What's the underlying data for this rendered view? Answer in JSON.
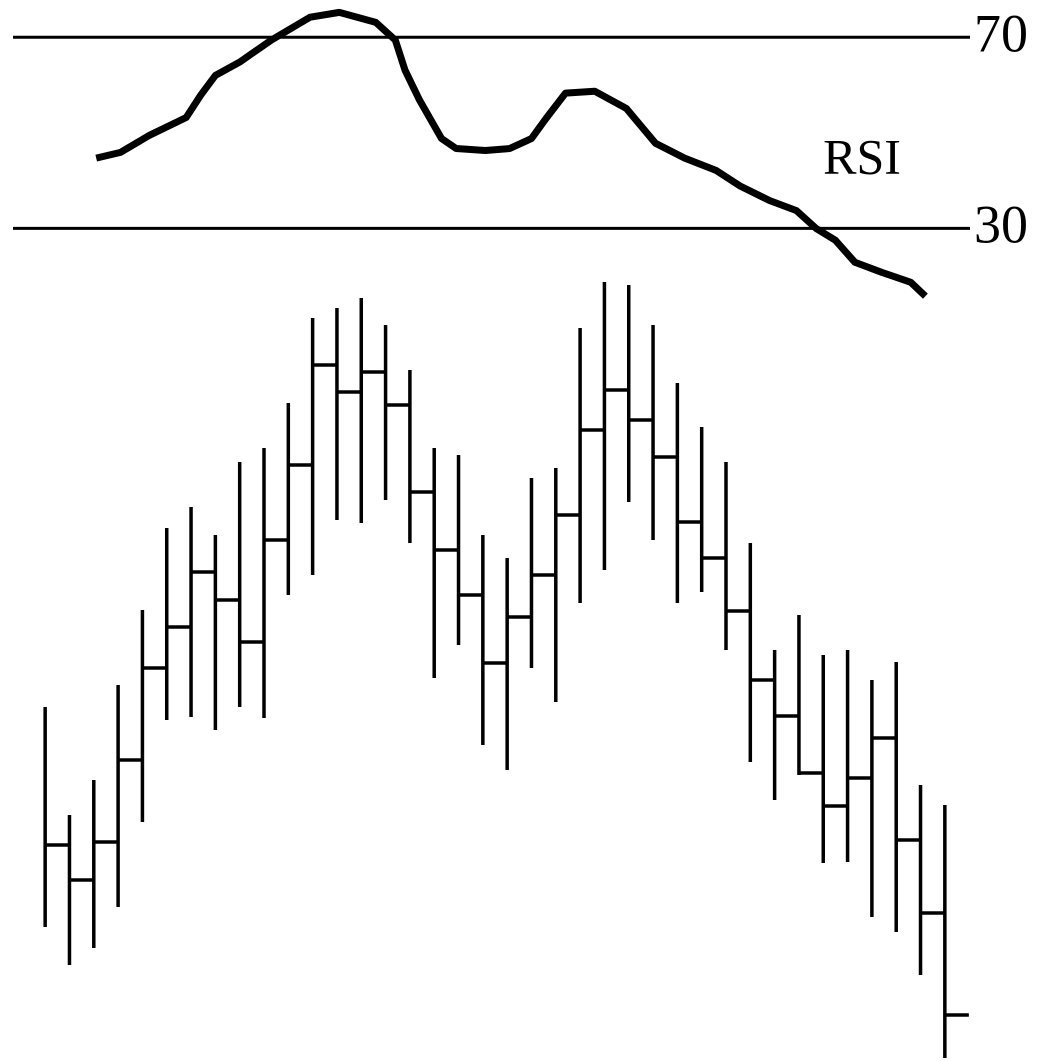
{
  "chart_data": [
    {
      "type": "line",
      "xlim": [
        -0.5,
        37.5
      ],
      "ylim": [
        15,
        78
      ],
      "yticks": [
        30,
        70
      ],
      "grid": true,
      "series": [
        {
          "name": "RSI",
          "color": "#000000",
          "x": [
            2.1,
            3.1,
            4.3,
            5.8,
            6.4,
            7.0,
            8.0,
            9.3,
            10.9,
            12.1,
            13.6,
            14.4,
            14.8,
            15.4,
            16.3,
            16.9,
            18.1,
            19.1,
            20.0,
            20.6,
            21.4,
            22.6,
            23.9,
            25.1,
            26.3,
            27.6,
            28.6,
            29.8,
            30.9,
            31.7,
            32.5,
            33.3,
            34.4,
            35.6,
            36.2
          ],
          "values": [
            44.7,
            45.9,
            49.5,
            53.2,
            57.9,
            62.0,
            64.8,
            69.4,
            74.2,
            75.2,
            73.1,
            69.4,
            63.1,
            56.8,
            48.8,
            46.7,
            46.3,
            46.7,
            48.8,
            53.0,
            58.3,
            58.7,
            55.1,
            47.8,
            44.7,
            42.1,
            38.8,
            35.8,
            33.7,
            30.0,
            27.5,
            22.9,
            20.8,
            18.7,
            15.8
          ]
        }
      ]
    },
    {
      "type": "hlc",
      "ylim": [
        0,
        1061
      ],
      "color": "#000000",
      "categories": [
        null,
        null,
        null,
        null,
        null,
        null,
        null,
        null,
        null,
        null,
        null,
        null,
        null,
        null,
        null,
        null,
        null,
        null,
        null,
        null,
        null,
        null,
        null,
        null,
        null,
        null,
        null,
        null,
        null,
        null,
        null,
        null,
        null,
        null,
        null,
        null,
        null,
        null
      ],
      "high": [
        354,
        246,
        281,
        376,
        451,
        533,
        554,
        526,
        599,
        613,
        658,
        743,
        753,
        763,
        736,
        691,
        613,
        606,
        526,
        503,
        583,
        593,
        733,
        779,
        776,
        736,
        678,
        634,
        599,
        518,
        411,
        446,
        406,
        411,
        381,
        399,
        276,
        256
      ],
      "low": [
        134,
        96,
        113,
        154,
        239,
        341,
        344,
        331,
        354,
        343,
        466,
        486,
        541,
        538,
        561,
        518,
        383,
        416,
        316,
        291,
        393,
        359,
        458,
        491,
        559,
        521,
        458,
        469,
        411,
        299,
        261,
        286,
        198,
        199,
        144,
        129,
        86,
        3
      ],
      "close": [
        216,
        181,
        219,
        301,
        393,
        434,
        489,
        461,
        419,
        521,
        596,
        696,
        669,
        689,
        656,
        569,
        511,
        466,
        398,
        444,
        486,
        546,
        631,
        671,
        641,
        604,
        539,
        503,
        450,
        381,
        345,
        288,
        255,
        283,
        323,
        221,
        148,
        46
      ]
    }
  ]
}
